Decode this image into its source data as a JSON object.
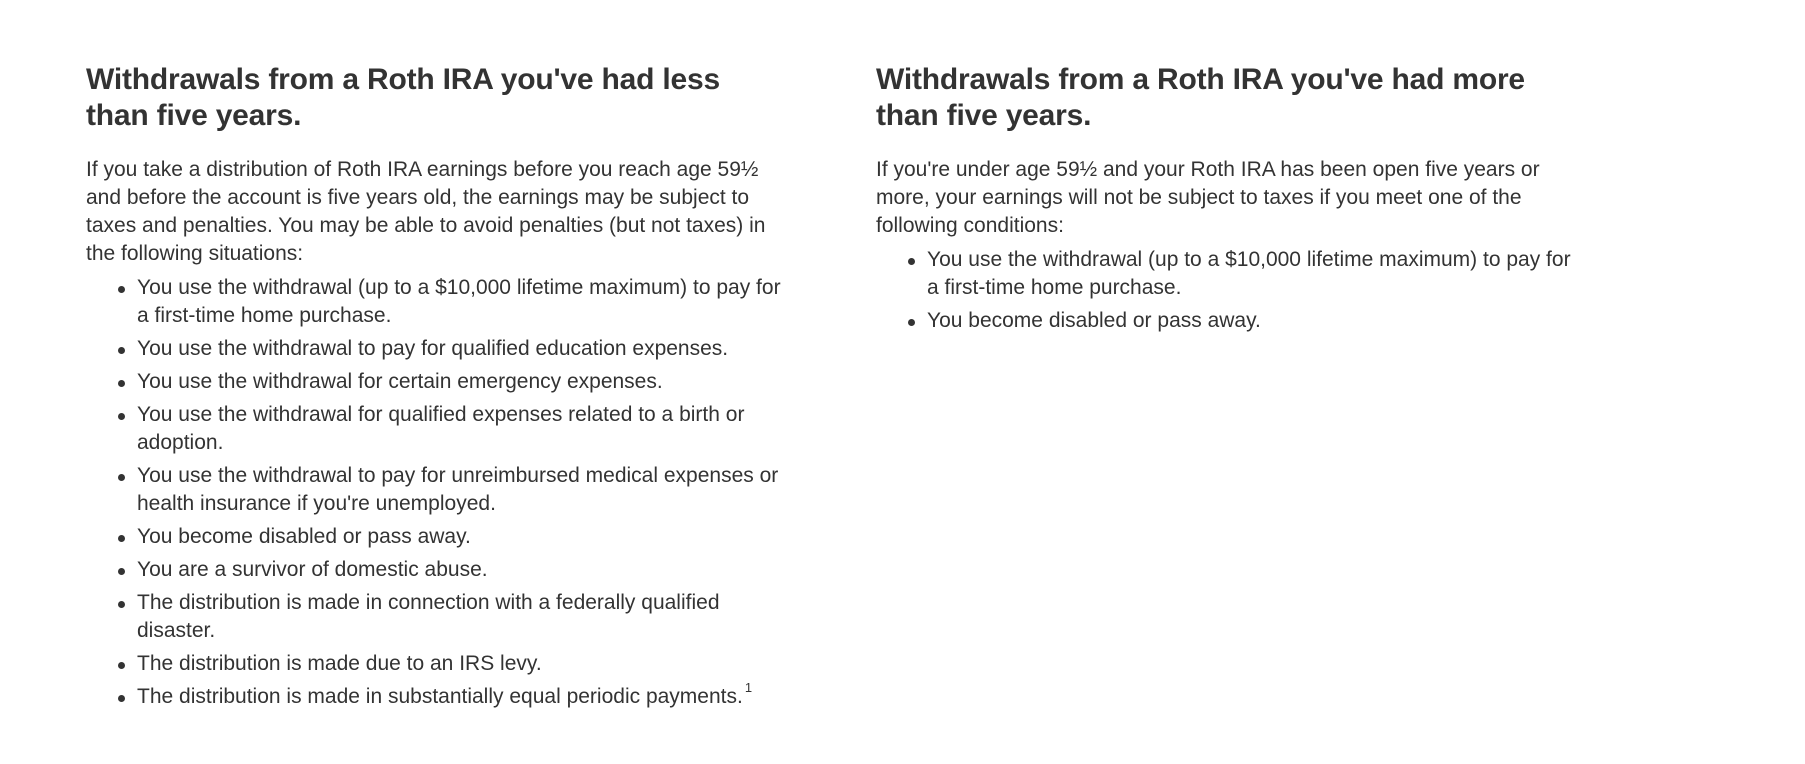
{
  "left": {
    "heading": "Withdrawals from a Roth IRA you've had less than five years.",
    "intro": "If you take a distribution of Roth IRA earnings before you reach age 59½ and before the account is five years old, the earnings may be subject to taxes and penalties. You may be able to avoid penalties (but not taxes) in the following situations:",
    "items": [
      "You use the withdrawal (up to a $10,000 lifetime maximum) to pay for a first-time home purchase.",
      "You use the withdrawal to pay for qualified education expenses.",
      "You use the withdrawal for certain emergency expenses.",
      "You use the withdrawal for qualified expenses related to a birth or adoption.",
      "You use the withdrawal to pay for unreimbursed medical expenses or health insurance if you're unemployed.",
      "You become disabled or pass away.",
      "You are a survivor of domestic abuse.",
      "The distribution is made in connection with a federally qualified disaster.",
      "The distribution is made due to an IRS levy.",
      "The distribution is made in substantially equal periodic payments."
    ],
    "footnote_ref": "1"
  },
  "right": {
    "heading": "Withdrawals from a Roth IRA you've had more than five years.",
    "intro": "If you're under age 59½ and your Roth IRA has been open five years or more, your earnings will not be subject to taxes if you meet one of the following conditions:",
    "items": [
      "You use the withdrawal (up to a $10,000 lifetime maximum) to pay for a first-time home purchase.",
      "You become disabled or pass away."
    ]
  },
  "colors": {
    "text": "#333333",
    "background": "#ffffff"
  }
}
